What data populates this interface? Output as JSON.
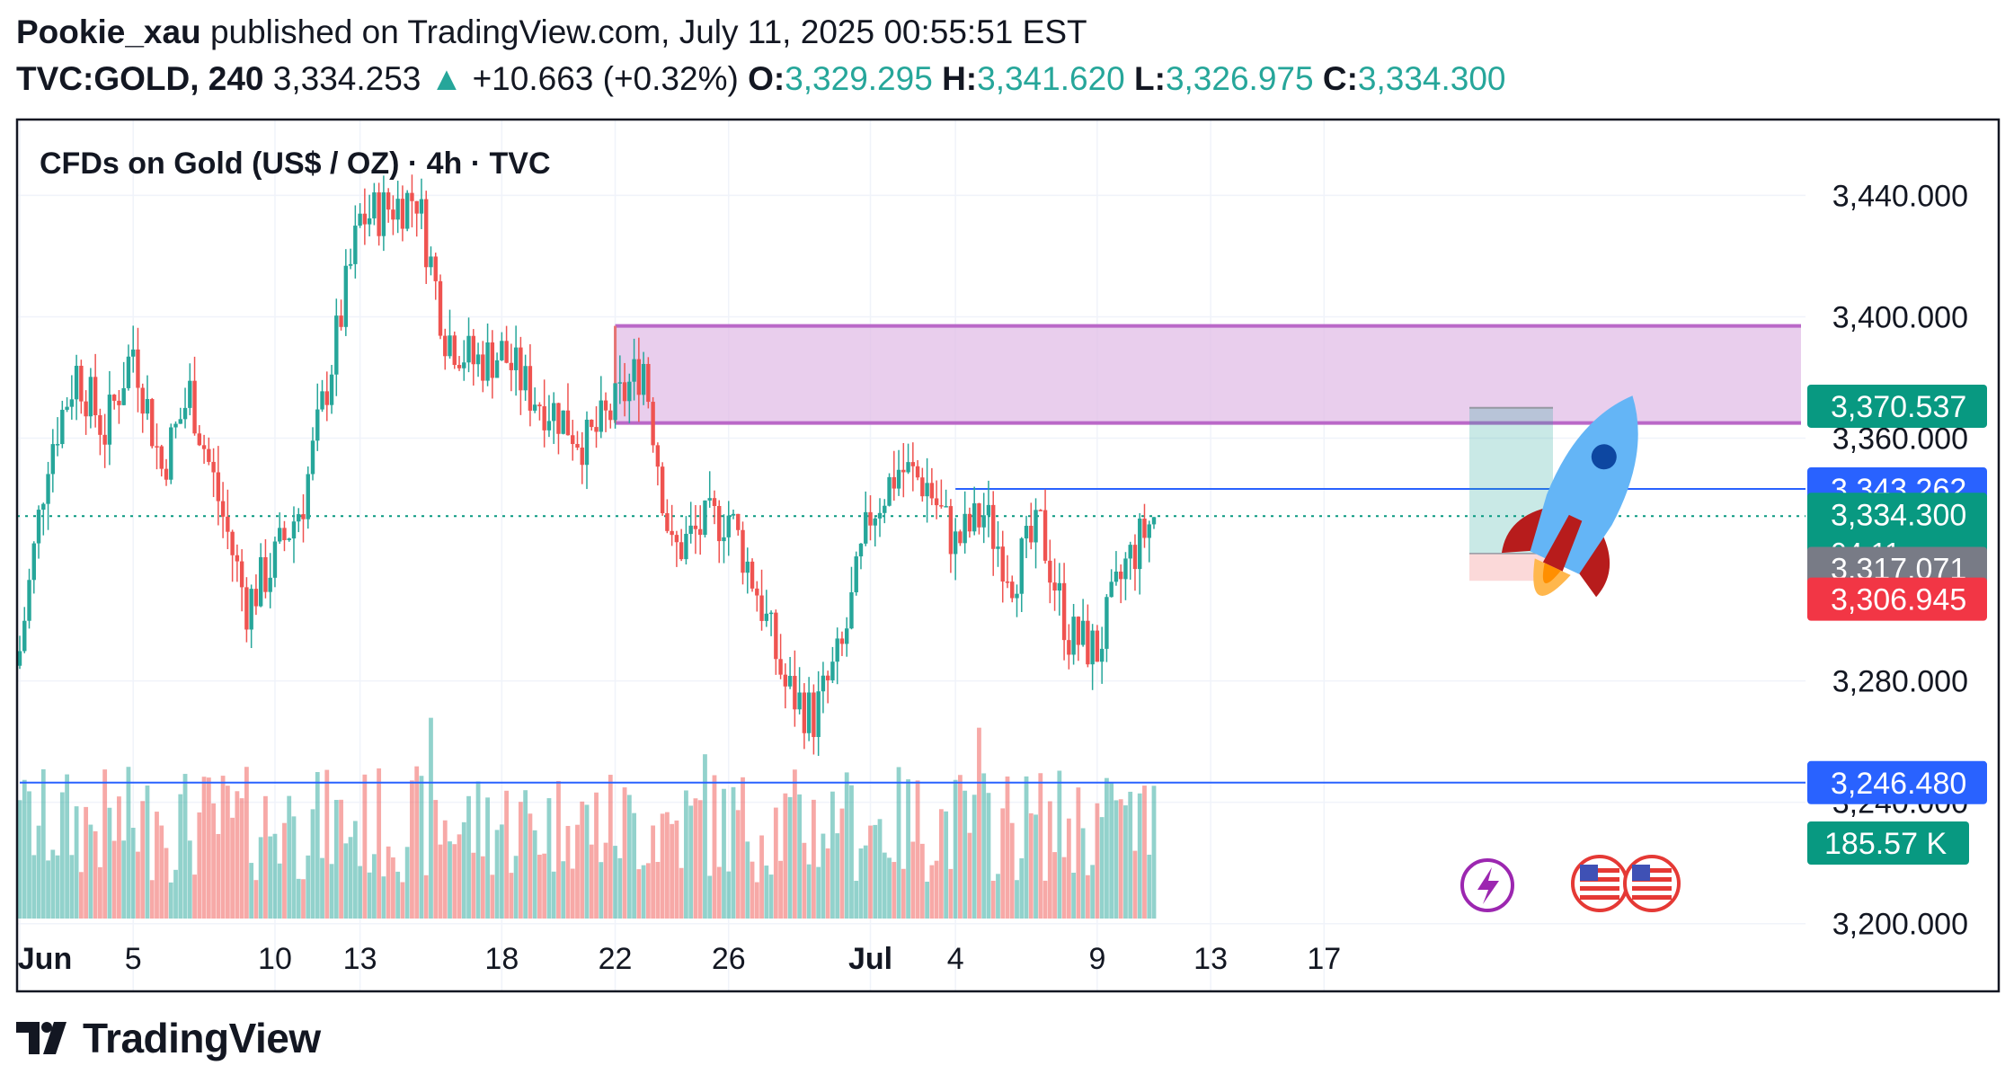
{
  "header": {
    "author": "Pookie_xau",
    "published_text": "published on TradingView.com, July 11, 2025 00:55:51 EST",
    "symbol": "TVC:GOLD, 240",
    "last_price": "3,334.253",
    "change": "+10.663 (+0.32%)",
    "open_label": "O:",
    "open": "3,329.295",
    "high_label": "H:",
    "high": "3,341.620",
    "low_label": "L:",
    "low": "3,326.975",
    "close_label": "C:",
    "close": "3,334.300"
  },
  "brand": {
    "name": "TradingView"
  },
  "colors": {
    "up": "#26a69a",
    "down": "#ef5350",
    "vol_up": "#26a69a",
    "vol_down": "#ef5350",
    "zone_fill": "#e1bee7",
    "zone_border": "#ba68c8",
    "blue_line": "#2962ff",
    "frame": "#131722"
  },
  "chart_data": {
    "type": "candlestick",
    "title": "CFDs on Gold (US$ / OZ) · 4h · TVC",
    "interval": "4h",
    "ylim": [
      3186,
      3465
    ],
    "y_ticks": [
      3200,
      3240,
      3280,
      3360,
      3400,
      3440
    ],
    "y_tick_labels": [
      "3,200.000",
      "3,240.000",
      "3,280.000",
      "3,360.000",
      "3,400.000",
      "3,440.000"
    ],
    "x_tick_labels": [
      "Jun",
      "5",
      "10",
      "13",
      "18",
      "22",
      "26",
      "Jul",
      "4",
      "9",
      "13",
      "17"
    ],
    "grid": true,
    "price_labels": [
      {
        "value": 3370.537,
        "text": "3,370.537",
        "color": "#089981"
      },
      {
        "value": 3343.262,
        "text": "3,343.262",
        "color": "#2962ff"
      },
      {
        "value": 3334.3,
        "text": "3,334.300",
        "sub": "04:11",
        "color": "#089981"
      },
      {
        "value": 3317.071,
        "text": "3,317.071",
        "color": "#787b86"
      },
      {
        "value": 3306.945,
        "text": "3,306.945",
        "color": "#f23645"
      },
      {
        "value": 3246.48,
        "text": "3,246.480",
        "color": "#2962ff"
      }
    ],
    "volume_label": {
      "text": "185.57 K",
      "color": "#089981"
    },
    "supply_zone": {
      "from": "2025-06-22",
      "to": "2025-07-20",
      "y_low": 3365,
      "y_high": 3397
    },
    "horizontal_lines": [
      {
        "value": 3343.262,
        "from": "2025-07-04"
      },
      {
        "value": 3246.48,
        "from": "2025-06-01"
      }
    ],
    "position_box": {
      "from": "2025-07-11",
      "to": "2025-07-13",
      "entry": 3322,
      "target": 3370,
      "stop": 3313
    },
    "last_close": 3334.3,
    "close_keypoints": [
      [
        "2025-06-01",
        3290
      ],
      [
        "2025-06-02",
        3355
      ],
      [
        "2025-06-03",
        3382
      ],
      [
        "2025-06-04",
        3362
      ],
      [
        "2025-06-05",
        3390
      ],
      [
        "2025-06-06",
        3350
      ],
      [
        "2025-06-07",
        3375
      ],
      [
        "2025-06-09",
        3305
      ],
      [
        "2025-06-10",
        3320
      ],
      [
        "2025-06-11",
        3340
      ],
      [
        "2025-06-12",
        3385
      ],
      [
        "2025-06-13",
        3432
      ],
      [
        "2025-06-15",
        3440
      ],
      [
        "2025-06-16",
        3395
      ],
      [
        "2025-06-17",
        3385
      ],
      [
        "2025-06-18",
        3388
      ],
      [
        "2025-06-19",
        3375
      ],
      [
        "2025-06-20",
        3368
      ],
      [
        "2025-06-21",
        3358
      ],
      [
        "2025-06-22",
        3370
      ],
      [
        "2025-06-23",
        3385
      ],
      [
        "2025-06-24",
        3322
      ],
      [
        "2025-06-25",
        3330
      ],
      [
        "2025-06-26",
        3335
      ],
      [
        "2025-06-27",
        3310
      ],
      [
        "2025-06-28",
        3278
      ],
      [
        "2025-06-29",
        3268
      ],
      [
        "2025-06-30",
        3290
      ],
      [
        "2025-07-01",
        3335
      ],
      [
        "2025-07-02",
        3350
      ],
      [
        "2025-07-03",
        3345
      ],
      [
        "2025-07-04",
        3325
      ],
      [
        "2025-07-05",
        3335
      ],
      [
        "2025-07-06",
        3315
      ],
      [
        "2025-07-07",
        3330
      ],
      [
        "2025-07-08",
        3295
      ],
      [
        "2025-07-09",
        3290
      ],
      [
        "2025-07-10",
        3318
      ],
      [
        "2025-07-11",
        3334.3
      ]
    ],
    "volume_range": [
      0,
      1
    ]
  }
}
